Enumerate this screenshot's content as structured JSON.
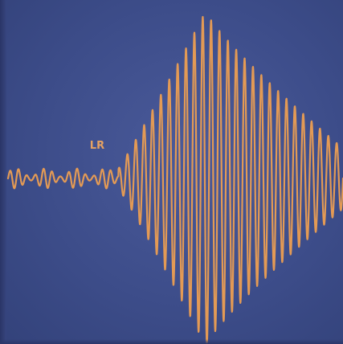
{
  "chart_data": {
    "type": "line",
    "title": "",
    "xlabel": "",
    "ylabel": "",
    "series": [
      {
        "name": "",
        "envelope": {
          "baseline_amplitude": 0.06,
          "onset_x": 0.33,
          "peak_x": 0.59,
          "peak_amplitude": 1.0,
          "tail_x": 1.0,
          "tail_amplitude": 0.18,
          "cycles": 40
        }
      }
    ],
    "annotations": [
      {
        "text": "LR",
        "at_x": 0.28
      }
    ],
    "grid": false,
    "legend": "none",
    "colors": {
      "trace": "#e39a55",
      "background": "#3f4f8c"
    }
  }
}
